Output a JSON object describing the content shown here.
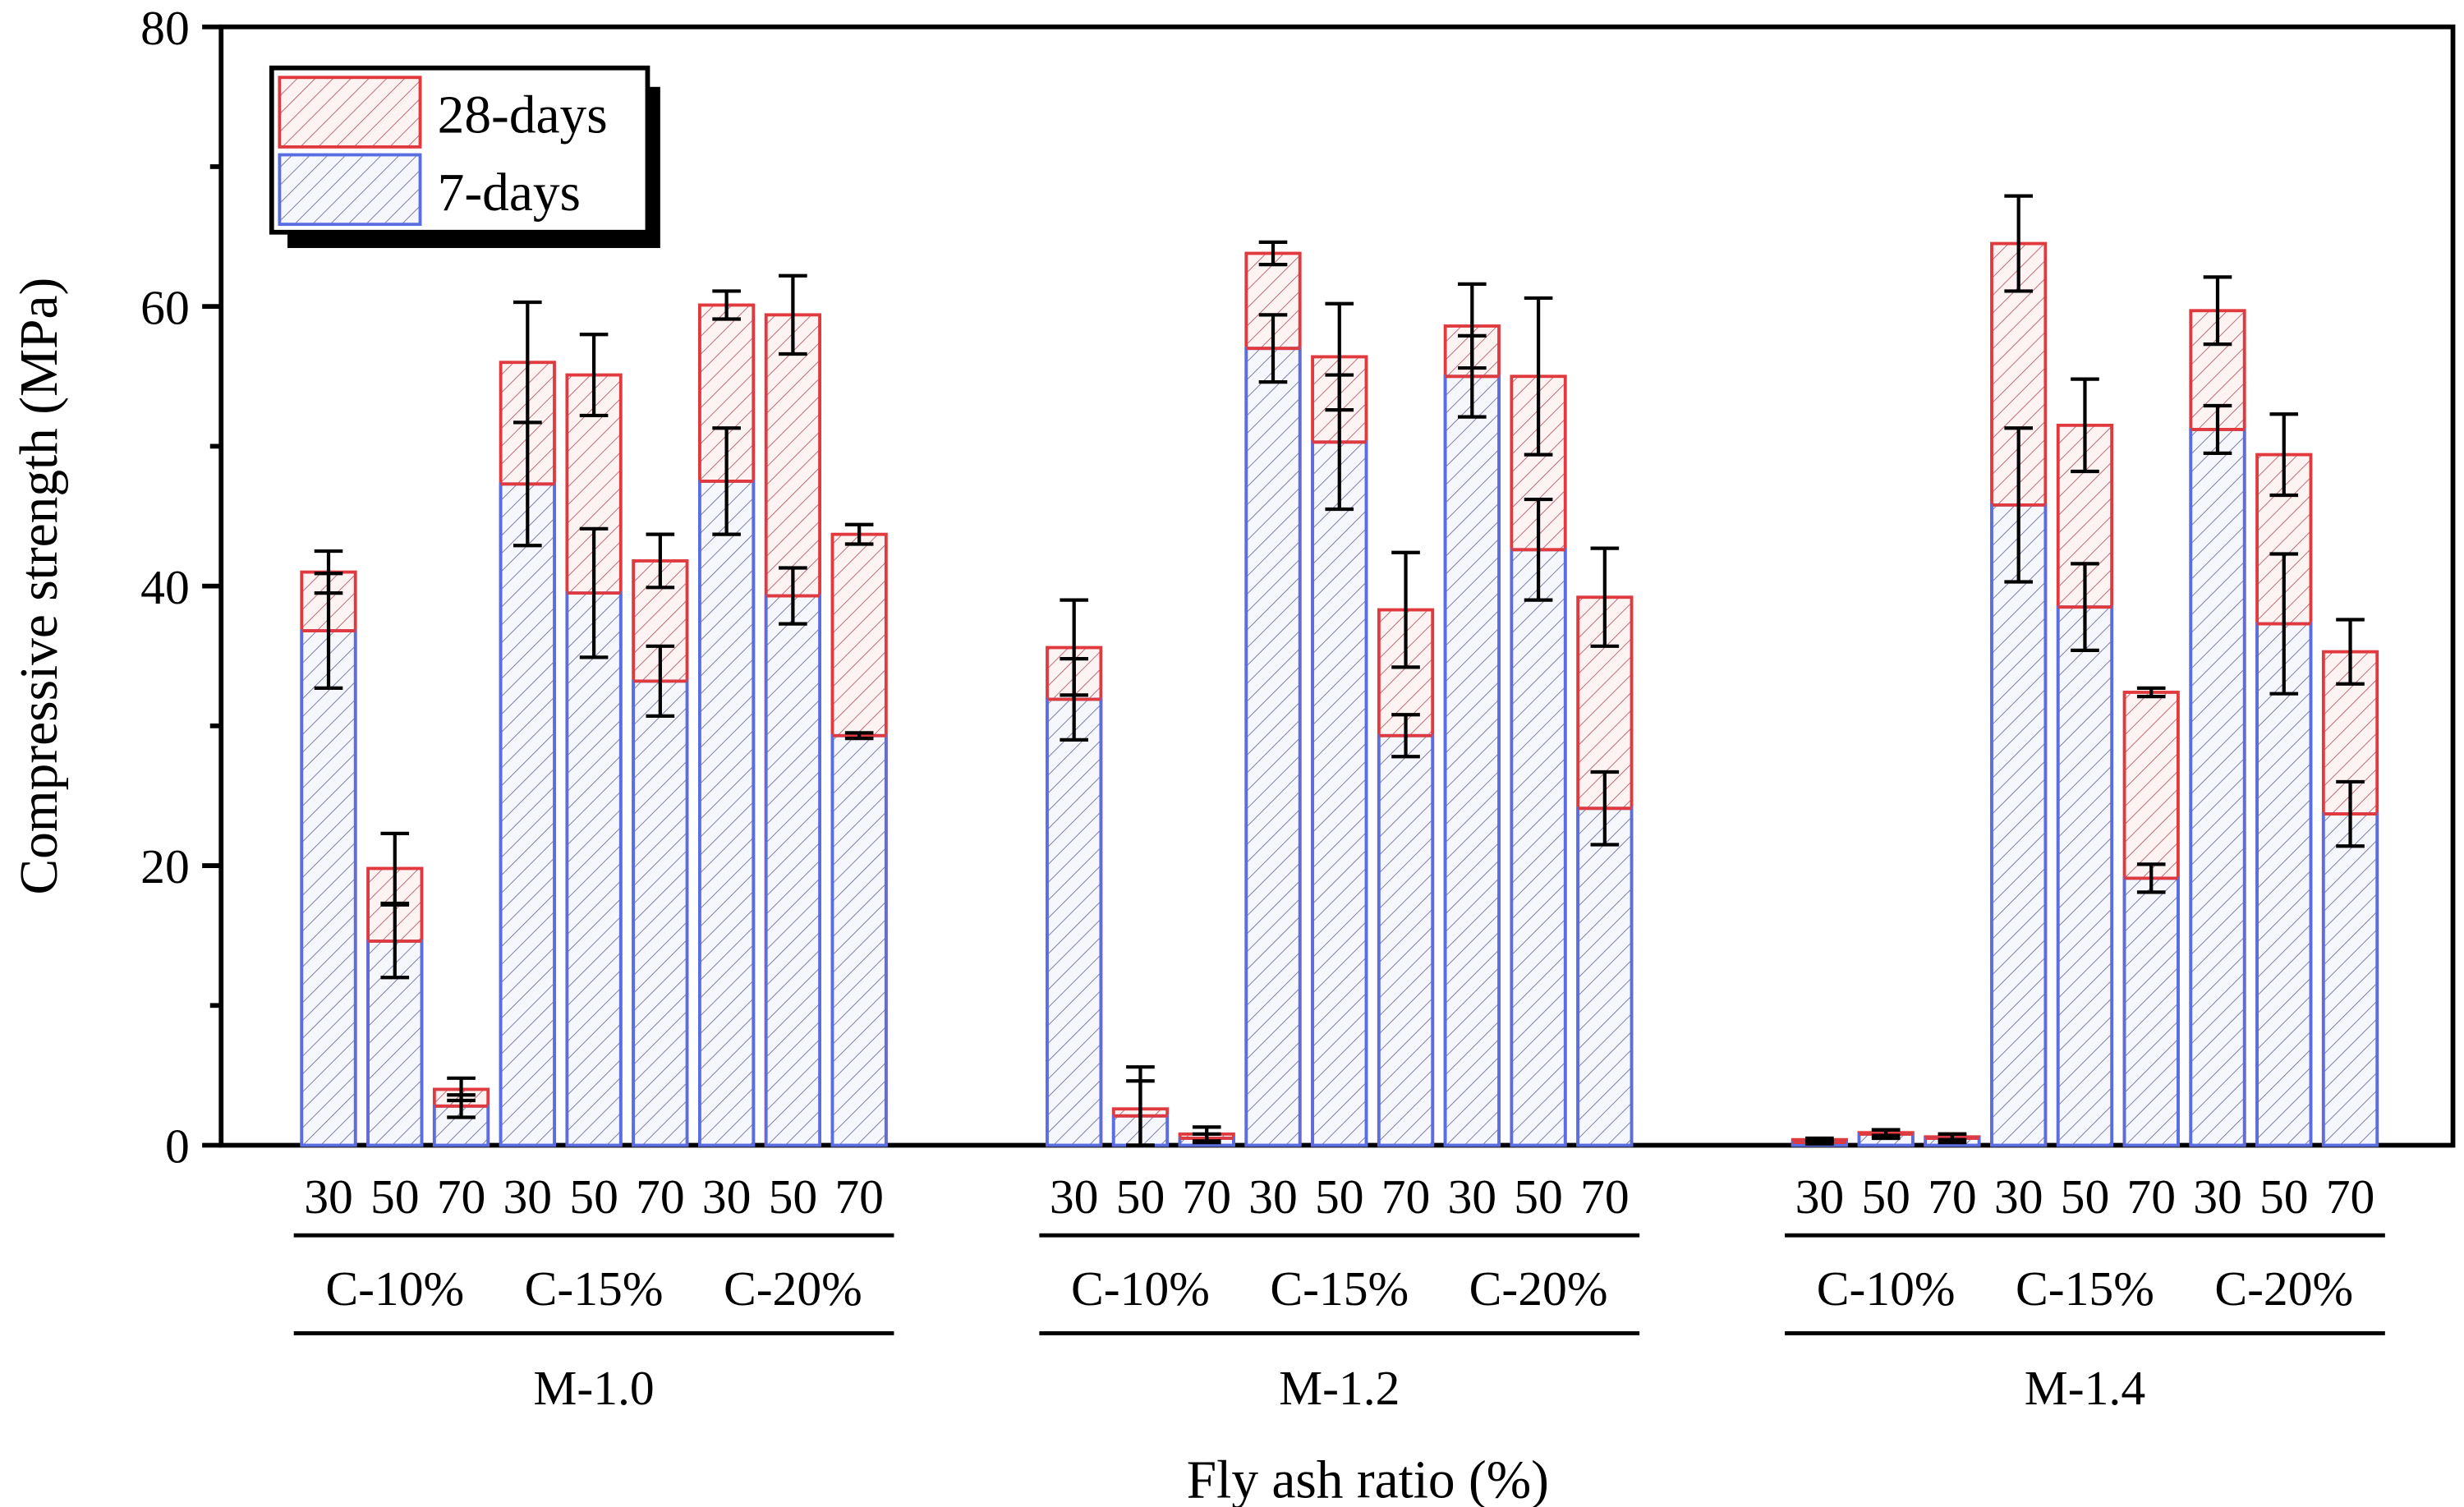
{
  "chart_data": {
    "type": "bar",
    "subtype": "overlaid-bar-with-error-bars",
    "title": "",
    "xlabel": "Fly ash ratio (%)",
    "ylabel": "Compressive strength (MPa)",
    "ylim": [
      0,
      80
    ],
    "yticks": [
      0,
      20,
      40,
      60,
      80
    ],
    "yticks_minor": [
      10,
      30,
      50,
      70
    ],
    "grid": false,
    "legend": {
      "placement": "top-left",
      "entries": [
        {
          "label": "28-days",
          "color": "#E0393E"
        },
        {
          "label": "7-days",
          "color": "#5B6EE1"
        }
      ]
    },
    "hatch": "diagonal",
    "groups": [
      {
        "label": "M-1.0",
        "subgroups": [
          {
            "label": "C-10%",
            "categories": [
              "30",
              "50",
              "70"
            ]
          },
          {
            "label": "C-15%",
            "categories": [
              "30",
              "50",
              "70"
            ]
          },
          {
            "label": "C-20%",
            "categories": [
              "30",
              "50",
              "70"
            ]
          }
        ]
      },
      {
        "label": "M-1.2",
        "subgroups": [
          {
            "label": "C-10%",
            "categories": [
              "30",
              "50",
              "70"
            ]
          },
          {
            "label": "C-15%",
            "categories": [
              "30",
              "50",
              "70"
            ]
          },
          {
            "label": "C-20%",
            "categories": [
              "30",
              "50",
              "70"
            ]
          }
        ]
      },
      {
        "label": "M-1.4",
        "subgroups": [
          {
            "label": "C-10%",
            "categories": [
              "30",
              "50",
              "70"
            ]
          },
          {
            "label": "C-15%",
            "categories": [
              "30",
              "50",
              "70"
            ]
          },
          {
            "label": "C-20%",
            "categories": [
              "30",
              "50",
              "70"
            ]
          }
        ]
      }
    ],
    "series": [
      {
        "name": "7-days",
        "color": "#5B6EE1",
        "values": [
          36.8,
          14.6,
          2.8,
          47.3,
          39.5,
          33.2,
          47.5,
          39.3,
          29.3,
          31.9,
          2.1,
          0.5,
          57.0,
          50.3,
          29.3,
          55.0,
          42.6,
          24.1,
          0.2,
          0.8,
          0.5,
          45.8,
          38.5,
          19.1,
          51.2,
          37.3,
          23.7
        ],
        "errors": [
          4.1,
          2.6,
          0.8,
          4.4,
          4.6,
          2.5,
          3.8,
          2.0,
          0.2,
          2.9,
          2.5,
          0.3,
          2.4,
          4.8,
          1.5,
          2.9,
          3.6,
          2.6,
          0.1,
          0.3,
          0.3,
          5.5,
          3.1,
          1.0,
          1.7,
          5.0,
          2.3
        ]
      },
      {
        "name": "28-days",
        "color": "#E0393E",
        "values": [
          41.0,
          19.8,
          4.0,
          56.0,
          55.1,
          41.8,
          60.1,
          59.4,
          43.7,
          35.6,
          2.6,
          0.8,
          63.8,
          56.4,
          38.3,
          58.6,
          55.0,
          39.2,
          0.4,
          0.9,
          0.6,
          64.5,
          51.5,
          32.4,
          59.7,
          49.4,
          35.3
        ],
        "errors": [
          1.5,
          2.5,
          0.8,
          4.3,
          2.9,
          1.9,
          1.0,
          2.8,
          0.7,
          3.4,
          3.0,
          0.5,
          0.8,
          3.8,
          4.1,
          3.0,
          5.6,
          3.5,
          0.1,
          0.2,
          0.2,
          3.4,
          3.3,
          0.3,
          2.4,
          2.9,
          2.3
        ]
      }
    ]
  }
}
